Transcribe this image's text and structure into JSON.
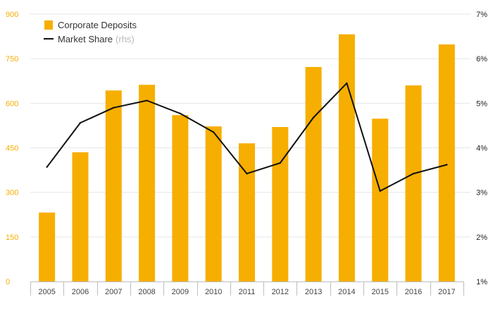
{
  "chart_data": {
    "type": "bar",
    "categories": [
      "2005",
      "2006",
      "2007",
      "2008",
      "2009",
      "2010",
      "2011",
      "2012",
      "2013",
      "2014",
      "2015",
      "2016",
      "2017"
    ],
    "series": [
      {
        "name": "Corporate Deposits",
        "type": "bar",
        "axis": "left",
        "values": [
          232,
          435,
          643,
          662,
          560,
          522,
          465,
          520,
          722,
          832,
          548,
          660,
          798
        ]
      },
      {
        "name": "Market Share",
        "name_suffix": "(rhs)",
        "type": "line",
        "axis": "right",
        "values": [
          3.57,
          4.56,
          4.9,
          5.06,
          4.77,
          4.35,
          3.42,
          3.66,
          4.68,
          5.45,
          3.03,
          3.42,
          3.62
        ]
      }
    ],
    "y_left": {
      "range": [
        0,
        900
      ],
      "ticks": [
        "0",
        "150",
        "300",
        "450",
        "600",
        "750",
        "900"
      ]
    },
    "y_right": {
      "range": [
        1,
        7
      ],
      "ticks": [
        "1%",
        "2%",
        "3%",
        "4%",
        "5%",
        "6%",
        "7%"
      ]
    },
    "grid": true,
    "legend_position": "top-left",
    "colors": {
      "bar": "#f6ae00",
      "line": "#111111",
      "left_ticks": "#f6ae00",
      "grid": "#e6e6e6",
      "axis": "#bdbdbd"
    }
  }
}
